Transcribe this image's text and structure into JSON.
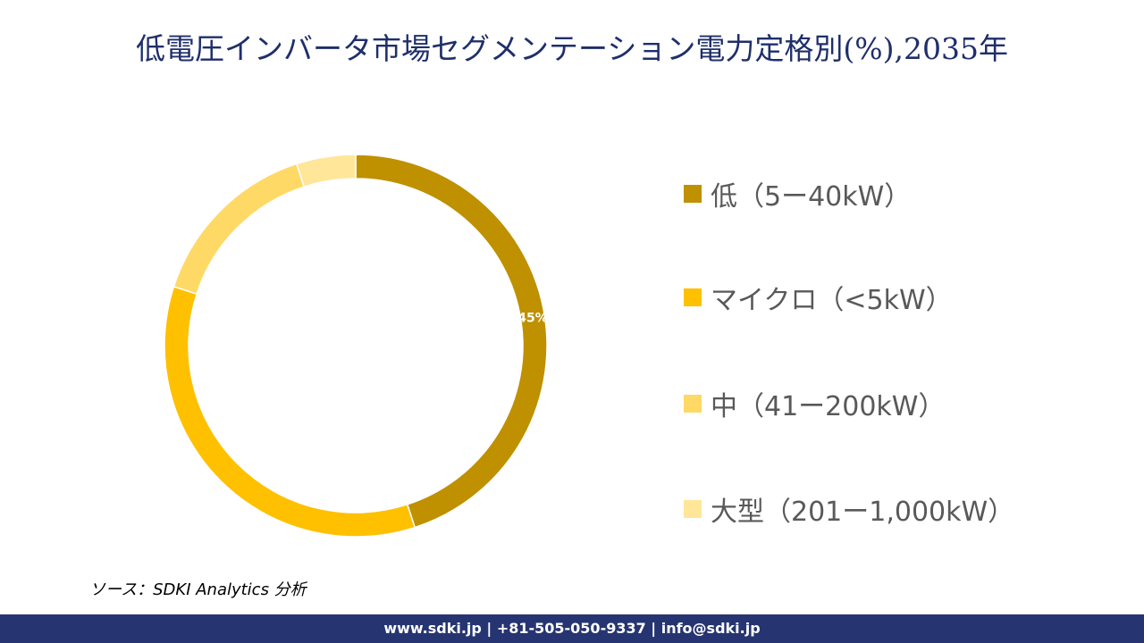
{
  "title": "低電圧インバータ市場セグメンテーション電力定格別(%),2035年",
  "chart_data": {
    "type": "donut",
    "title": "低電圧インバータ市場セグメンテーション電力定格別(%),2035年",
    "categories": [
      "低（5ー40kW）",
      "マイクロ（<5kW）",
      "中（41ー200kW）",
      "大型（201ー1,000kW）"
    ],
    "values": [
      45,
      35,
      15,
      5
    ],
    "colors": [
      "#BF9000",
      "#FFC000",
      "#FFD966",
      "#FFE699"
    ],
    "data_labels": [
      "45%",
      "",
      "",
      ""
    ],
    "legend_position": "right"
  },
  "source": "ソース：SDKI Analytics 分析",
  "footer": "www.sdki.jp | +81-505-050-9337 | info@sdki.jp"
}
